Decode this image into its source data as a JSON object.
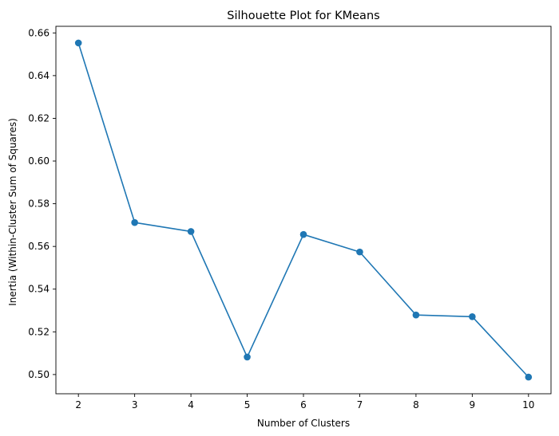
{
  "chart_data": {
    "type": "line",
    "title": "Silhouette Plot for KMeans",
    "xlabel": "Number of Clusters",
    "ylabel": "Inertia (Within-Cluster Sum of Squares)",
    "x": [
      2,
      3,
      4,
      5,
      6,
      7,
      8,
      9,
      10
    ],
    "series": [
      {
        "values": [
          0.6553,
          0.5712,
          0.567,
          0.5082,
          0.5656,
          0.5574,
          0.5279,
          0.5271,
          0.4988
        ],
        "color": "#1f77b4",
        "marker": "circle"
      }
    ],
    "xlim": [
      1.6,
      10.4
    ],
    "ylim": [
      0.491,
      0.6631
    ],
    "xticks": [
      2,
      3,
      4,
      5,
      6,
      7,
      8,
      9,
      10
    ],
    "yticks": [
      0.5,
      0.52,
      0.54,
      0.56,
      0.58,
      0.6,
      0.62,
      0.64,
      0.66
    ],
    "ytick_labels": [
      "0.50",
      "0.52",
      "0.54",
      "0.56",
      "0.58",
      "0.60",
      "0.62",
      "0.64",
      "0.66"
    ],
    "grid": false,
    "legend": null
  }
}
